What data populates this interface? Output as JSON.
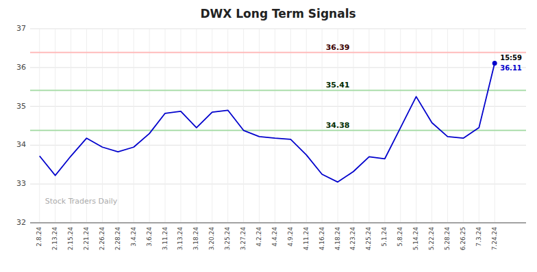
{
  "chart_data": {
    "type": "line",
    "title": "DWX Long Term Signals",
    "categories": [
      "2.8.24",
      "2.13.24",
      "2.15.24",
      "2.21.24",
      "2.26.24",
      "2.28.24",
      "3.4.24",
      "3.6.24",
      "3.11.24",
      "3.13.24",
      "3.18.24",
      "3.20.24",
      "3.25.24",
      "3.27.24",
      "4.2.24",
      "4.4.24",
      "4.9.24",
      "4.11.24",
      "4.16.24",
      "4.18.24",
      "4.23.24",
      "4.25.24",
      "5.1.24",
      "5.8.24",
      "5.14.24",
      "5.22.24",
      "5.28.24",
      "6.26.25",
      "7.3.24",
      "7.24.24"
    ],
    "values": [
      33.72,
      33.22,
      33.72,
      34.18,
      33.95,
      33.83,
      33.95,
      34.3,
      34.82,
      34.87,
      34.45,
      34.85,
      34.9,
      34.38,
      34.22,
      34.18,
      34.15,
      33.75,
      33.25,
      33.05,
      33.32,
      33.7,
      33.65,
      34.45,
      35.25,
      34.58,
      34.22,
      34.18,
      34.45,
      36.11
    ],
    "color": "#0000cc",
    "ylim": [
      32,
      37
    ],
    "yticks": [
      32,
      33,
      34,
      35,
      36,
      37
    ],
    "grid": true,
    "reference_lines": [
      {
        "value": 36.39,
        "color": "#ffbbbb"
      },
      {
        "value": 35.41,
        "color": "#aaddaa"
      },
      {
        "value": 34.38,
        "color": "#aaddaa"
      }
    ],
    "annotations": [
      {
        "text": "15:59"
      }
    ],
    "watermark": "Stock Traders Daily"
  }
}
